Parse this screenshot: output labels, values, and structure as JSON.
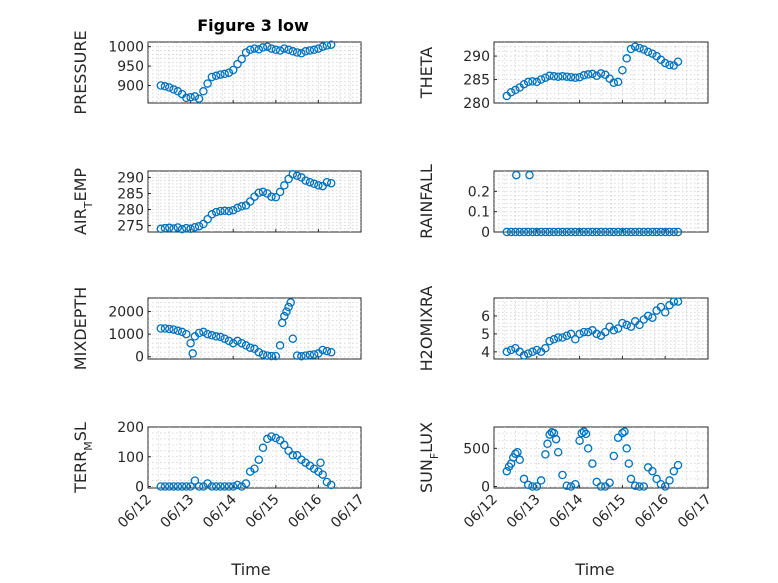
{
  "colors": {
    "marker": "#0072bd",
    "axis": "#262626",
    "grid": "#cfcfcf",
    "background": "#ffffff"
  },
  "chart_data": [
    {
      "type": "scatter",
      "title": "Figure 3 low",
      "ylabel_main": "PRESSURE",
      "ylabel_sub": "",
      "ylabel_tail": "",
      "xlabel": "",
      "xlim": [
        12,
        17
      ],
      "ylim": [
        855,
        1012
      ],
      "yticks": [
        900,
        950,
        1000
      ],
      "grid": true,
      "x": [
        12.3,
        12.4,
        12.5,
        12.6,
        12.7,
        12.8,
        12.9,
        13.0,
        13.1,
        13.2,
        13.3,
        13.4,
        13.5,
        13.6,
        13.7,
        13.8,
        13.9,
        14.0,
        14.1,
        14.2,
        14.3,
        14.4,
        14.5,
        14.6,
        14.7,
        14.8,
        14.9,
        15.0,
        15.1,
        15.2,
        15.3,
        15.4,
        15.5,
        15.6,
        15.7,
        15.8,
        15.9,
        16.0,
        16.1,
        16.2,
        16.3
      ],
      "y": [
        900,
        898,
        895,
        890,
        885,
        878,
        868,
        870,
        872,
        866,
        885,
        905,
        922,
        925,
        928,
        930,
        933,
        940,
        955,
        968,
        985,
        992,
        995,
        993,
        998,
        1000,
        995,
        992,
        990,
        995,
        992,
        988,
        985,
        983,
        988,
        990,
        992,
        995,
        1000,
        1003,
        1005
      ]
    },
    {
      "type": "scatter",
      "title": "",
      "ylabel_main": "THETA",
      "ylabel_sub": "",
      "ylabel_tail": "",
      "xlabel": "",
      "xlim": [
        12,
        17
      ],
      "ylim": [
        280,
        293
      ],
      "yticks": [
        280,
        285,
        290
      ],
      "grid": true,
      "x": [
        12.3,
        12.4,
        12.5,
        12.6,
        12.7,
        12.8,
        12.9,
        13.0,
        13.1,
        13.2,
        13.3,
        13.4,
        13.5,
        13.6,
        13.7,
        13.8,
        13.9,
        14.0,
        14.1,
        14.2,
        14.3,
        14.4,
        14.5,
        14.6,
        14.7,
        14.8,
        14.9,
        15.0,
        15.1,
        15.2,
        15.3,
        15.4,
        15.5,
        15.6,
        15.7,
        15.8,
        15.9,
        16.0,
        16.1,
        16.2,
        16.3
      ],
      "y": [
        281.5,
        282.3,
        282.8,
        283.3,
        284.0,
        284.5,
        284.6,
        284.5,
        285.0,
        285.4,
        285.8,
        285.7,
        285.6,
        285.7,
        285.6,
        285.5,
        285.4,
        285.5,
        285.9,
        286.1,
        286.2,
        285.8,
        286.3,
        286.0,
        285.2,
        284.3,
        284.5,
        287.0,
        289.5,
        291.5,
        292.0,
        291.7,
        291.4,
        290.9,
        290.5,
        290.0,
        289.2,
        288.5,
        288.1,
        288.0,
        288.8
      ]
    },
    {
      "type": "scatter",
      "title": "",
      "ylabel_main": "AIR",
      "ylabel_sub": "T",
      "ylabel_tail": "EMP",
      "xlabel": "",
      "xlim": [
        12,
        17
      ],
      "ylim": [
        273,
        292
      ],
      "yticks": [
        275,
        280,
        285,
        290
      ],
      "grid": true,
      "x": [
        12.3,
        12.4,
        12.5,
        12.6,
        12.7,
        12.8,
        12.9,
        13.0,
        13.1,
        13.2,
        13.3,
        13.4,
        13.5,
        13.6,
        13.7,
        13.8,
        13.9,
        14.0,
        14.1,
        14.2,
        14.3,
        14.4,
        14.5,
        14.6,
        14.7,
        14.8,
        14.9,
        15.0,
        15.1,
        15.2,
        15.3,
        15.4,
        15.5,
        15.6,
        15.7,
        15.8,
        15.9,
        16.0,
        16.1,
        16.2,
        16.3
      ],
      "y": [
        274.0,
        274.2,
        274.3,
        274.1,
        274.4,
        273.9,
        274.2,
        274.0,
        274.5,
        274.8,
        275.5,
        277.0,
        278.5,
        279.2,
        279.5,
        279.6,
        279.5,
        279.8,
        280.5,
        281.0,
        281.3,
        282.5,
        284.0,
        285.2,
        285.5,
        285.0,
        284.0,
        283.8,
        285.5,
        287.5,
        289.5,
        291.0,
        290.5,
        290.0,
        289.0,
        288.5,
        288.0,
        287.5,
        287.3,
        288.5,
        288.2
      ]
    },
    {
      "type": "scatter",
      "title": "",
      "ylabel_main": "RAINFALL",
      "ylabel_sub": "",
      "ylabel_tail": "",
      "xlabel": "",
      "xlim": [
        12,
        17
      ],
      "ylim": [
        0,
        0.3
      ],
      "yticks": [
        0,
        0.1,
        0.2
      ],
      "grid": true,
      "x": [
        12.3,
        12.4,
        12.5,
        12.6,
        12.7,
        12.8,
        12.9,
        13.0,
        13.1,
        13.2,
        13.3,
        13.4,
        13.5,
        13.6,
        13.7,
        13.8,
        13.9,
        14.0,
        14.1,
        14.2,
        14.3,
        14.4,
        14.5,
        14.6,
        14.7,
        14.8,
        14.9,
        15.0,
        15.1,
        15.2,
        15.3,
        15.4,
        15.5,
        15.6,
        15.7,
        15.8,
        15.9,
        16.0,
        16.1,
        16.2,
        16.3,
        12.52,
        12.83
      ],
      "y": [
        0,
        0,
        0,
        0,
        0,
        0,
        0,
        0,
        0,
        0,
        0,
        0,
        0,
        0,
        0,
        0,
        0,
        0,
        0,
        0,
        0,
        0,
        0,
        0,
        0,
        0,
        0,
        0,
        0,
        0,
        0,
        0,
        0,
        0,
        0,
        0,
        0,
        0,
        0,
        0,
        0,
        0.28,
        0.28
      ]
    },
    {
      "type": "scatter",
      "title": "",
      "ylabel_main": "MIXDEPTH",
      "ylabel_sub": "",
      "ylabel_tail": "",
      "xlabel": "",
      "xlim": [
        12,
        17
      ],
      "ylim": [
        -100,
        2600
      ],
      "yticks": [
        0,
        1000,
        2000
      ],
      "grid": true,
      "x": [
        12.3,
        12.4,
        12.5,
        12.6,
        12.7,
        12.8,
        12.9,
        13.0,
        13.05,
        13.1,
        13.2,
        13.3,
        13.4,
        13.5,
        13.6,
        13.7,
        13.8,
        13.9,
        14.0,
        14.1,
        14.2,
        14.3,
        14.4,
        14.5,
        14.6,
        14.7,
        14.8,
        14.9,
        15.0,
        15.1,
        15.15,
        15.2,
        15.25,
        15.3,
        15.35,
        15.4,
        15.5,
        15.6,
        15.7,
        15.8,
        15.9,
        16.0,
        16.1,
        16.2,
        16.3
      ],
      "y": [
        1250,
        1250,
        1230,
        1200,
        1150,
        1100,
        1000,
        600,
        150,
        900,
        1050,
        1100,
        1000,
        950,
        900,
        880,
        800,
        700,
        600,
        700,
        600,
        500,
        400,
        350,
        200,
        100,
        50,
        30,
        30,
        500,
        1500,
        1800,
        2000,
        2200,
        2400,
        800,
        50,
        20,
        50,
        80,
        100,
        150,
        300,
        250,
        200
      ]
    },
    {
      "type": "scatter",
      "title": "",
      "ylabel_main": "H2OMIXRA",
      "ylabel_sub": "",
      "ylabel_tail": "",
      "xlabel": "",
      "xlim": [
        12,
        17
      ],
      "ylim": [
        3.6,
        7.0
      ],
      "yticks": [
        4,
        5,
        6
      ],
      "grid": true,
      "x": [
        12.3,
        12.4,
        12.5,
        12.6,
        12.7,
        12.8,
        12.9,
        13.0,
        13.1,
        13.2,
        13.3,
        13.4,
        13.5,
        13.6,
        13.7,
        13.8,
        13.9,
        14.0,
        14.1,
        14.2,
        14.3,
        14.4,
        14.5,
        14.6,
        14.7,
        14.8,
        14.9,
        15.0,
        15.1,
        15.2,
        15.3,
        15.4,
        15.5,
        15.6,
        15.7,
        15.8,
        15.9,
        16.0,
        16.1,
        16.2,
        16.3
      ],
      "y": [
        4.0,
        4.1,
        4.2,
        4.0,
        3.8,
        3.9,
        4.0,
        4.1,
        4.0,
        4.2,
        4.6,
        4.7,
        4.8,
        4.8,
        4.9,
        5.0,
        4.7,
        5.0,
        5.1,
        5.1,
        5.2,
        5.0,
        4.9,
        5.1,
        5.4,
        5.2,
        5.3,
        5.6,
        5.5,
        5.4,
        5.7,
        5.5,
        5.8,
        6.0,
        5.9,
        6.3,
        6.5,
        6.2,
        6.6,
        6.8,
        6.8
      ]
    },
    {
      "type": "scatter",
      "title": "",
      "ylabel_main": "TERR",
      "ylabel_sub": "M",
      "ylabel_tail": "SL",
      "xlabel": "Time",
      "xlim": [
        12,
        17
      ],
      "ylim": [
        -5,
        200
      ],
      "yticks": [
        0,
        100,
        200
      ],
      "grid": true,
      "xtick_labels": [
        "06/12",
        "06/13",
        "06/14",
        "06/15",
        "06/16",
        "06/17"
      ],
      "x": [
        12.3,
        12.4,
        12.5,
        12.6,
        12.7,
        12.8,
        12.9,
        13.0,
        13.1,
        13.2,
        13.3,
        13.4,
        13.5,
        13.6,
        13.7,
        13.8,
        13.9,
        14.0,
        14.1,
        14.2,
        14.3,
        14.4,
        14.5,
        14.6,
        14.7,
        14.8,
        14.9,
        15.0,
        15.1,
        15.2,
        15.3,
        15.4,
        15.5,
        15.6,
        15.7,
        15.8,
        15.9,
        16.0,
        16.05,
        16.1,
        16.2,
        16.3
      ],
      "y": [
        0,
        0,
        0,
        0,
        0,
        0,
        0,
        0,
        20,
        0,
        0,
        10,
        0,
        0,
        0,
        0,
        0,
        0,
        5,
        0,
        10,
        50,
        60,
        90,
        130,
        160,
        168,
        163,
        155,
        140,
        120,
        105,
        105,
        90,
        80,
        70,
        60,
        50,
        80,
        40,
        15,
        5
      ]
    },
    {
      "type": "scatter",
      "title": "",
      "ylabel_main": "SUN",
      "ylabel_sub": "F",
      "ylabel_tail": "LUX",
      "xlabel": "Time",
      "xlim": [
        12,
        17
      ],
      "ylim": [
        -20,
        780
      ],
      "yticks": [
        0,
        500
      ],
      "grid": true,
      "xtick_labels": [
        "06/12",
        "06/13",
        "06/14",
        "06/15",
        "06/16",
        "06/17"
      ],
      "x": [
        12.3,
        12.35,
        12.4,
        12.45,
        12.5,
        12.55,
        12.6,
        12.7,
        12.8,
        12.9,
        13.0,
        13.1,
        13.2,
        13.25,
        13.3,
        13.35,
        13.4,
        13.45,
        13.5,
        13.6,
        13.7,
        13.8,
        13.9,
        14.0,
        14.05,
        14.1,
        14.15,
        14.2,
        14.3,
        14.4,
        14.5,
        14.6,
        14.7,
        14.8,
        14.9,
        15.0,
        15.05,
        15.1,
        15.15,
        15.2,
        15.3,
        15.4,
        15.5,
        15.6,
        15.7,
        15.8,
        15.9,
        16.0,
        16.1,
        16.2,
        16.3
      ],
      "y": [
        200,
        260,
        300,
        380,
        430,
        450,
        350,
        100,
        20,
        0,
        0,
        80,
        420,
        560,
        680,
        710,
        700,
        620,
        450,
        150,
        10,
        0,
        30,
        600,
        700,
        720,
        690,
        500,
        300,
        60,
        0,
        0,
        50,
        400,
        640,
        700,
        720,
        500,
        300,
        100,
        10,
        0,
        0,
        250,
        200,
        100,
        30,
        0,
        80,
        200,
        280
      ]
    }
  ]
}
